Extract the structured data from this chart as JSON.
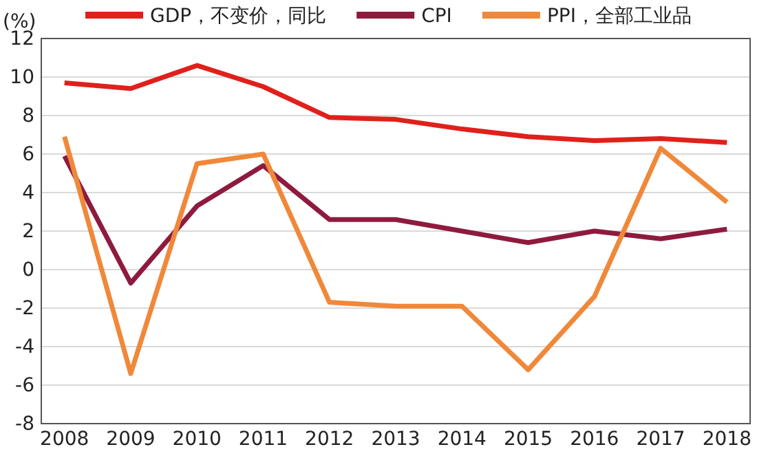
{
  "chart_data": {
    "type": "line",
    "ylabel": "(%)",
    "categories": [
      "2008",
      "2009",
      "2010",
      "2011",
      "2012",
      "2013",
      "2014",
      "2015",
      "2016",
      "2017",
      "2018"
    ],
    "series": [
      {
        "name": "GDP，不变价，同比",
        "color": "#e0201b",
        "values": [
          9.7,
          9.4,
          10.6,
          9.5,
          7.9,
          7.8,
          7.3,
          6.9,
          6.7,
          6.8,
          6.6
        ]
      },
      {
        "name": "CPI",
        "color": "#8e1b3e",
        "values": [
          5.9,
          -0.7,
          3.3,
          5.4,
          2.6,
          2.6,
          2.0,
          1.4,
          2.0,
          1.6,
          2.1
        ]
      },
      {
        "name": "PPI，全部工业品",
        "color": "#f0883a",
        "values": [
          6.9,
          -5.4,
          5.5,
          6.0,
          -1.7,
          -1.9,
          -1.9,
          -5.2,
          -1.4,
          6.3,
          3.5
        ]
      }
    ],
    "ylim": [
      -8,
      12
    ],
    "yticks": [
      -8,
      -6,
      -4,
      -2,
      0,
      2,
      4,
      6,
      8,
      10,
      12
    ],
    "grid": "y",
    "legend": "top",
    "marker": "none",
    "line_style": "solid"
  }
}
